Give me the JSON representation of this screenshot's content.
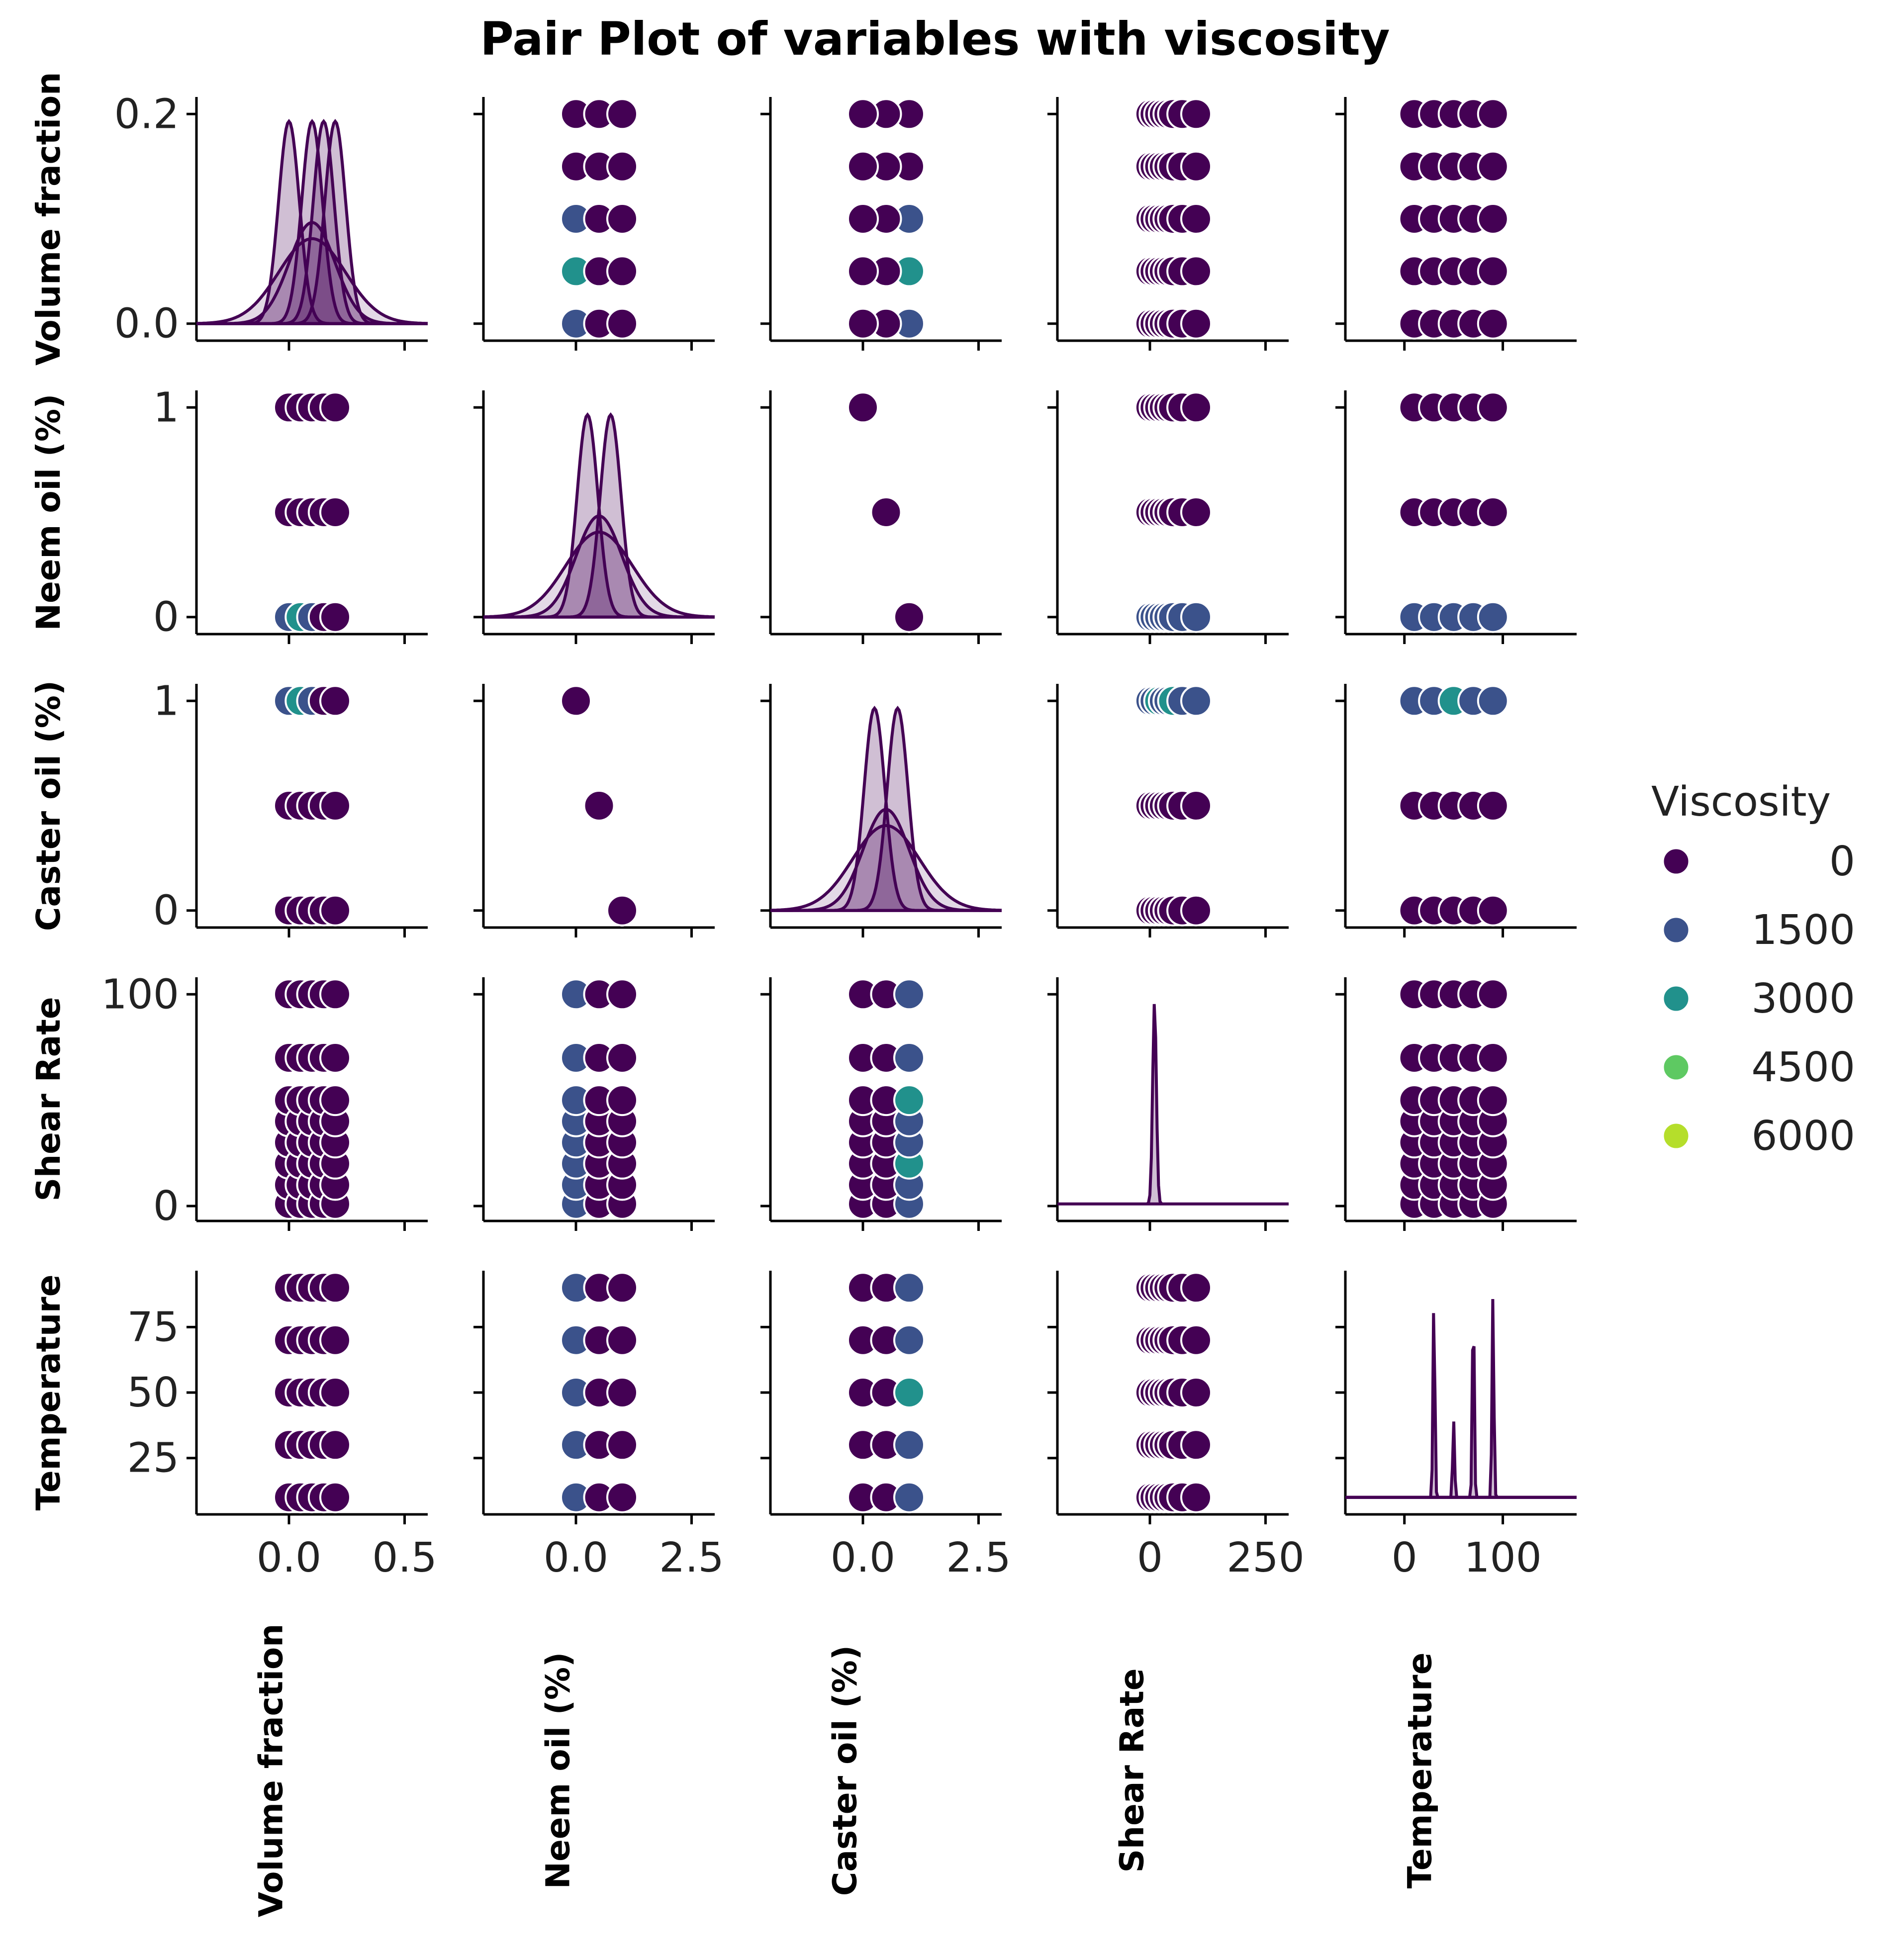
{
  "chart_data": {
    "type": "scatter",
    "kind": "pairplot",
    "title": "Pair Plot of variables with viscosity",
    "variables": [
      "Volume fraction",
      "Neem oil (%)",
      "Caster oil (%)",
      "Shear Rate",
      "Temperature"
    ],
    "hue": {
      "name": "Viscosity",
      "legend_values": [
        "0",
        "1500",
        "3000",
        "4500",
        "6000"
      ],
      "colors": [
        "#440154",
        "#3b528b",
        "#21918c",
        "#5ec962",
        "#b5de2b"
      ]
    },
    "axes": {
      "Volume fraction": {
        "range": [
          -0.4,
          0.6
        ],
        "ticks": [
          0.0,
          0.5
        ],
        "tick_labels": [
          "0.0",
          "0.5"
        ],
        "y_tick_labels": [
          "0.0",
          "0.2"
        ],
        "levels": [
          0.0,
          0.05,
          0.1,
          0.15,
          0.2
        ]
      },
      "Neem oil (%)": {
        "range": [
          -2.0,
          3.0
        ],
        "ticks": [
          0.0,
          2.5
        ],
        "tick_labels": [
          "0.0",
          "2.5"
        ],
        "y_tick_labels": [
          "0",
          "1"
        ],
        "levels": [
          0.0,
          0.5,
          1.0
        ]
      },
      "Caster oil (%)": {
        "range": [
          -2.0,
          3.0
        ],
        "ticks": [
          0.0,
          2.5
        ],
        "tick_labels": [
          "0.0",
          "2.5"
        ],
        "y_tick_labels": [
          "0",
          "1"
        ],
        "levels": [
          0.0,
          0.5,
          1.0
        ]
      },
      "Shear Rate": {
        "range": [
          -200,
          300
        ],
        "ticks": [
          0,
          250
        ],
        "tick_labels": [
          "0",
          "250"
        ],
        "y_tick_labels": [
          "0",
          "100"
        ],
        "levels": [
          1,
          10,
          20,
          30,
          40,
          50,
          70,
          100
        ]
      },
      "Temperature": {
        "range": [
          -60,
          175
        ],
        "ticks": [
          0,
          100
        ],
        "tick_labels": [
          "0",
          "100"
        ],
        "y_tick_labels": [
          "25",
          "50",
          "75"
        ],
        "levels": [
          10,
          30,
          50,
          70,
          90
        ]
      }
    },
    "samples": [
      {
        "vf": 0.0,
        "neem": 0.0,
        "caster": 1.0,
        "hue": 1500
      },
      {
        "vf": 0.05,
        "neem": 0.0,
        "caster": 1.0,
        "hue": 3000
      },
      {
        "vf": 0.1,
        "neem": 0.0,
        "caster": 1.0,
        "hue": 1500
      },
      {
        "vf": 0.15,
        "neem": 0.0,
        "caster": 1.0,
        "hue": 0
      },
      {
        "vf": 0.2,
        "neem": 0.0,
        "caster": 1.0,
        "hue": 0
      },
      {
        "vf": 0.0,
        "neem": 0.5,
        "caster": 0.5,
        "hue": 0
      },
      {
        "vf": 0.05,
        "neem": 0.5,
        "caster": 0.5,
        "hue": 0
      },
      {
        "vf": 0.1,
        "neem": 0.5,
        "caster": 0.5,
        "hue": 0
      },
      {
        "vf": 0.15,
        "neem": 0.5,
        "caster": 0.5,
        "hue": 0
      },
      {
        "vf": 0.2,
        "neem": 0.5,
        "caster": 0.5,
        "hue": 0
      },
      {
        "vf": 0.0,
        "neem": 1.0,
        "caster": 0.0,
        "hue": 0
      },
      {
        "vf": 0.05,
        "neem": 1.0,
        "caster": 0.0,
        "hue": 0
      },
      {
        "vf": 0.1,
        "neem": 1.0,
        "caster": 0.0,
        "hue": 0
      },
      {
        "vf": 0.15,
        "neem": 1.0,
        "caster": 0.0,
        "hue": 0
      },
      {
        "vf": 0.2,
        "neem": 1.0,
        "caster": 0.0,
        "hue": 0
      }
    ],
    "kde_peaks": {
      "Volume fraction": [
        0.0,
        0.1,
        0.15,
        0.2
      ],
      "Neem oil (%)": [
        0.25,
        0.75
      ],
      "Caster oil (%)": [
        0.25,
        0.75
      ],
      "Shear Rate": [
        10
      ],
      "Temperature": [
        30,
        50,
        70,
        90
      ]
    },
    "legend_position": "right"
  }
}
